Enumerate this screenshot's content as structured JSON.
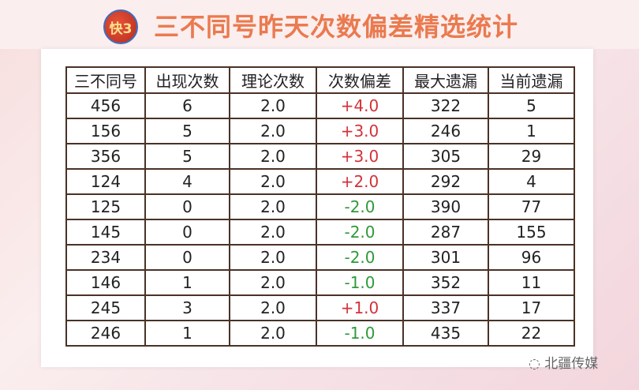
{
  "title": "三不同号昨天次数偏差精选统计",
  "logo_text": "快3",
  "watermark": "北疆传媒",
  "colors": {
    "title": "#ea7a4f",
    "positive": "#d2323a",
    "negative": "#2e9a3a",
    "border": "#4a3226"
  },
  "table": {
    "headers": [
      "三不同号",
      "出现次数",
      "理论次数",
      "次数偏差",
      "最大遗漏",
      "当前遗漏"
    ],
    "rows": [
      [
        "456",
        "6",
        "2.0",
        "+4.0",
        "322",
        "5"
      ],
      [
        "156",
        "5",
        "2.0",
        "+3.0",
        "246",
        "1"
      ],
      [
        "356",
        "5",
        "2.0",
        "+3.0",
        "305",
        "29"
      ],
      [
        "124",
        "4",
        "2.0",
        "+2.0",
        "292",
        "4"
      ],
      [
        "125",
        "0",
        "2.0",
        "-2.0",
        "390",
        "77"
      ],
      [
        "145",
        "0",
        "2.0",
        "-2.0",
        "287",
        "155"
      ],
      [
        "234",
        "0",
        "2.0",
        "-2.0",
        "301",
        "96"
      ],
      [
        "146",
        "1",
        "2.0",
        "-1.0",
        "352",
        "11"
      ],
      [
        "245",
        "3",
        "2.0",
        "+1.0",
        "337",
        "17"
      ],
      [
        "246",
        "1",
        "2.0",
        "-1.0",
        "435",
        "22"
      ]
    ]
  }
}
